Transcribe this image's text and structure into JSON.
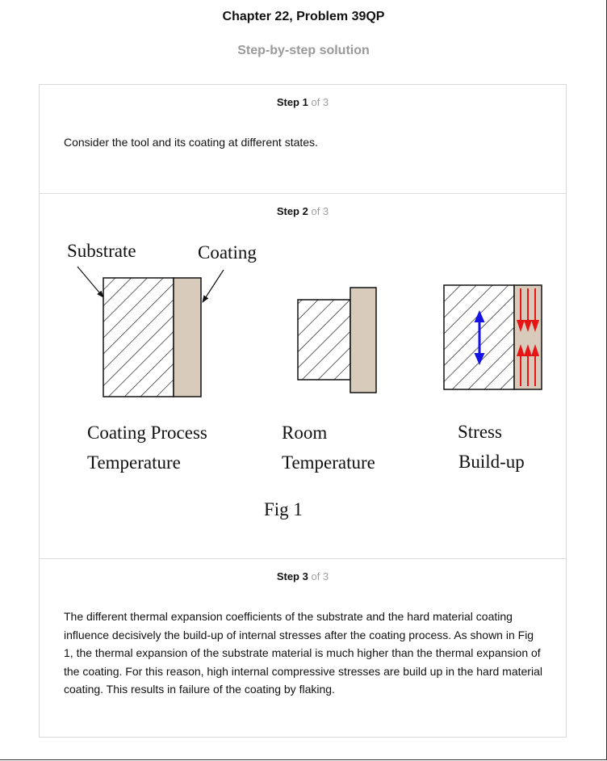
{
  "header": {
    "title": "Chapter 22, Problem 39QP",
    "subtitle": "Step-by-step solution"
  },
  "steps": [
    {
      "label": "Step 1",
      "of": "of 3",
      "text": "Consider the tool and its coating at different states."
    },
    {
      "label": "Step 2",
      "of": "of 3",
      "figure": {
        "label_substrate": "Substrate",
        "label_coating": "Coating",
        "caption1_line1": "Coating Process",
        "caption1_line2": "Temperature",
        "caption2_line1": "Room",
        "caption2_line2": "Temperature",
        "caption3_line1": "Stress",
        "caption3_line2": "Build-up",
        "fig_label": "Fig 1",
        "colors": {
          "coating_fill": "#d9cbbb",
          "arrow_substrate": "#1414e6",
          "arrow_coating": "#e61414"
        }
      }
    },
    {
      "label": "Step 3",
      "of": "of 3",
      "text": "The different thermal expansion coefficients of the substrate and the hard material coating influence decisively the build-up of internal stresses after the coating process. As shown in Fig 1, the thermal expansion of the substrate material is much higher than the thermal expansion of the coating. For this reason, high internal compressive stresses are build up in the hard material coating. This results in failure of the coating by flaking."
    }
  ]
}
